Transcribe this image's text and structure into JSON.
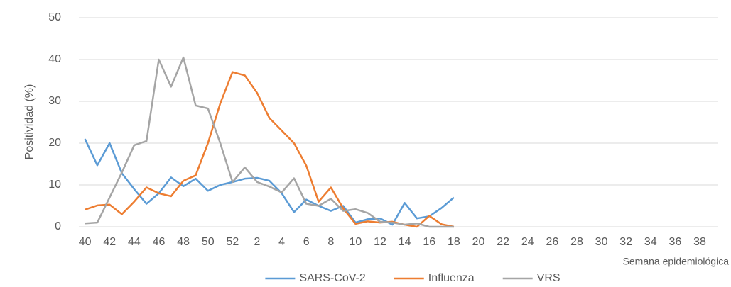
{
  "chart_data": {
    "type": "line",
    "y_label": "Positividad  (%)",
    "x_label": "Semana epidemiológica",
    "categories": [
      "40",
      null,
      "42",
      null,
      "44",
      null,
      "46",
      null,
      "48",
      null,
      "50",
      null,
      "52",
      null,
      "2",
      null,
      "4",
      null,
      "6",
      null,
      "8",
      null,
      "10",
      null,
      "12",
      null,
      "14",
      null,
      "16",
      null,
      "18",
      null,
      "20",
      null,
      "22",
      null,
      "24",
      null,
      "26",
      null,
      "28",
      null,
      "30",
      null,
      "32",
      null,
      "34",
      null,
      "36",
      null,
      "38",
      null
    ],
    "series": [
      {
        "name": "SARS-CoV-2",
        "color": "#5b9bd5",
        "values": [
          21,
          14.7,
          20,
          12.8,
          9,
          5.5,
          8,
          11.8,
          9.7,
          11.5,
          8.6,
          10,
          10.7,
          11.5,
          11.7,
          11,
          8,
          3.5,
          6.5,
          5,
          3.8,
          5,
          1,
          1.8,
          2,
          0.5,
          5.7,
          2,
          2.5,
          4.5,
          7,
          null,
          null,
          null,
          null,
          null,
          null,
          null,
          null,
          null,
          null,
          null,
          null,
          null,
          null,
          null,
          null,
          null,
          null,
          null,
          null,
          null
        ]
      },
      {
        "name": "Influenza",
        "color": "#ed7d31",
        "values": [
          4.1,
          5.1,
          5.3,
          3,
          6,
          9.4,
          8,
          7.3,
          11,
          12.3,
          20,
          29.5,
          37,
          36.2,
          32,
          26,
          23,
          20,
          14.6,
          6,
          9.4,
          4.4,
          0.7,
          1.3,
          1,
          1.2,
          0.5,
          0,
          2.6,
          0.6,
          0,
          null,
          null,
          null,
          null,
          null,
          null,
          null,
          null,
          null,
          null,
          null,
          null,
          null,
          null,
          null,
          null,
          null,
          null,
          null,
          null,
          null
        ]
      },
      {
        "name": "VRS",
        "color": "#a5a5a5",
        "values": [
          0.8,
          1,
          7,
          13,
          19.5,
          20.5,
          40,
          33.5,
          40.5,
          29,
          28.3,
          20,
          10.7,
          14.2,
          10.7,
          9.6,
          8.2,
          11.6,
          5.5,
          5,
          6.7,
          3.8,
          4.2,
          3.3,
          1.2,
          1,
          0.5,
          0.8,
          0,
          0,
          0,
          null,
          null,
          null,
          null,
          null,
          null,
          null,
          null,
          null,
          null,
          null,
          null,
          null,
          null,
          null,
          null,
          null,
          null,
          null,
          null,
          null
        ]
      }
    ],
    "ylim": [
      0,
      50
    ],
    "yticks": [
      0,
      10,
      20,
      30,
      40,
      50
    ],
    "grid": true,
    "legend": "bottom"
  }
}
